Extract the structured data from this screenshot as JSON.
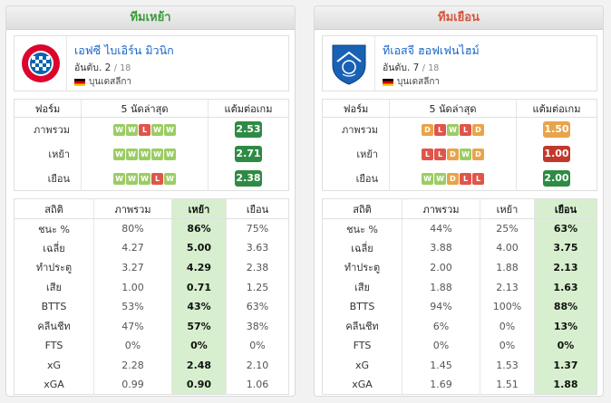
{
  "home": {
    "header": "ทีมเหย้า",
    "name": "เอฟซี ไบเอิร์น มิวนิก",
    "rank_prefix": "อันดับ.",
    "rank": "2",
    "rank_total": "18",
    "league": "บุนเดสลีกา",
    "form_headers": [
      "ฟอร์ม",
      "5 นัดล่าสุด",
      "แต้มต่อเกม"
    ],
    "form_rows": [
      {
        "label": "ภาพรวม",
        "results": [
          "W",
          "W",
          "L",
          "W",
          "W"
        ],
        "ppg": "2.53",
        "ppg_color": "green"
      },
      {
        "label": "เหย้า",
        "results": [
          "W",
          "W",
          "W",
          "W",
          "W"
        ],
        "ppg": "2.71",
        "ppg_color": "green"
      },
      {
        "label": "เยือน",
        "results": [
          "W",
          "W",
          "W",
          "L",
          "W"
        ],
        "ppg": "2.38",
        "ppg_color": "green"
      }
    ],
    "stat_headers": [
      "สถิติ",
      "ภาพรวม",
      "เหย้า",
      "เยือน"
    ],
    "highlight_col": 2,
    "stats": [
      {
        "label": "ชนะ %",
        "values": [
          "80%",
          "86%",
          "75%"
        ]
      },
      {
        "label": "เฉลี่ย",
        "values": [
          "4.27",
          "5.00",
          "3.63"
        ]
      },
      {
        "label": "ทำประตู",
        "values": [
          "3.27",
          "4.29",
          "2.38"
        ]
      },
      {
        "label": "เสีย",
        "values": [
          "1.00",
          "0.71",
          "1.25"
        ]
      },
      {
        "label": "BTTS",
        "values": [
          "53%",
          "43%",
          "63%"
        ]
      },
      {
        "label": "คลีนชีท",
        "values": [
          "47%",
          "57%",
          "38%"
        ]
      },
      {
        "label": "FTS",
        "values": [
          "0%",
          "0%",
          "0%"
        ]
      },
      {
        "label": "xG",
        "values": [
          "2.28",
          "2.48",
          "2.10"
        ]
      },
      {
        "label": "xGA",
        "values": [
          "0.99",
          "0.90",
          "1.06"
        ]
      }
    ]
  },
  "away": {
    "header": "ทีมเยือน",
    "name": "ทีเอสจี ฮอฟเฟนไฮม์",
    "rank_prefix": "อันดับ.",
    "rank": "7",
    "rank_total": "18",
    "league": "บุนเดสลีกา",
    "form_headers": [
      "ฟอร์ม",
      "5 นัดล่าสุด",
      "แต้มต่อเกม"
    ],
    "form_rows": [
      {
        "label": "ภาพรวม",
        "results": [
          "D",
          "L",
          "W",
          "L",
          "D"
        ],
        "ppg": "1.50",
        "ppg_color": "orange"
      },
      {
        "label": "เหย้า",
        "results": [
          "L",
          "L",
          "D",
          "W",
          "D"
        ],
        "ppg": "1.00",
        "ppg_color": "red"
      },
      {
        "label": "เยือน",
        "results": [
          "W",
          "W",
          "D",
          "L",
          "L"
        ],
        "ppg": "2.00",
        "ppg_color": "green"
      }
    ],
    "stat_headers": [
      "สถิติ",
      "ภาพรวม",
      "เหย้า",
      "เยือน"
    ],
    "highlight_col": 3,
    "stats": [
      {
        "label": "ชนะ %",
        "values": [
          "44%",
          "25%",
          "63%"
        ]
      },
      {
        "label": "เฉลี่ย",
        "values": [
          "3.88",
          "4.00",
          "3.75"
        ]
      },
      {
        "label": "ทำประตู",
        "values": [
          "2.00",
          "1.88",
          "2.13"
        ]
      },
      {
        "label": "เสีย",
        "values": [
          "1.88",
          "2.13",
          "1.63"
        ]
      },
      {
        "label": "BTTS",
        "values": [
          "94%",
          "100%",
          "88%"
        ]
      },
      {
        "label": "คลีนชีท",
        "values": [
          "6%",
          "0%",
          "13%"
        ]
      },
      {
        "label": "FTS",
        "values": [
          "0%",
          "0%",
          "0%"
        ]
      },
      {
        "label": "xG",
        "values": [
          "1.45",
          "1.53",
          "1.37"
        ]
      },
      {
        "label": "xGA",
        "values": [
          "1.69",
          "1.51",
          "1.88"
        ]
      }
    ]
  },
  "logos": {
    "home": {
      "icon": "bayern-munich-logo",
      "colors": {
        "red": "#dc052d",
        "blue": "#0066b2"
      }
    },
    "away": {
      "icon": "hoffenheim-logo",
      "colors": {
        "blue": "#1961b5"
      }
    }
  }
}
